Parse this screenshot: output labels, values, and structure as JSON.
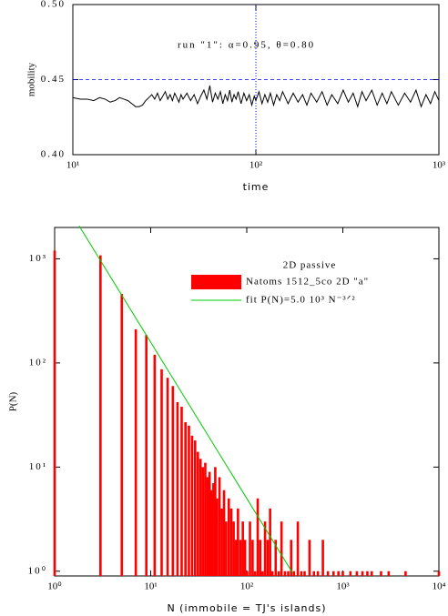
{
  "chart_data": [
    {
      "type": "line",
      "xlabel": "time",
      "ylabel": "mobility",
      "annotation": "run \"1\":  α=0.95,  θ=0.80",
      "xscale": "log",
      "xlim": [
        10,
        1000
      ],
      "xticks": [
        {
          "value": 10,
          "label": "10¹"
        },
        {
          "value": 100,
          "label": "10²"
        },
        {
          "value": 1000,
          "label": "10³"
        }
      ],
      "ylim": [
        0.4,
        0.5
      ],
      "yticks": [
        {
          "value": 0.4,
          "label": "0.40"
        },
        0.45,
        {
          "value": 0.5,
          "label": "0.50"
        }
      ],
      "hline": 0.45,
      "vline": 100,
      "ref_color": "#0000ff",
      "x": [
        10,
        11,
        12,
        13,
        14,
        15,
        16,
        17,
        18,
        19,
        20,
        21,
        22,
        23,
        24,
        25,
        26,
        27,
        28,
        29,
        30,
        31,
        32,
        33,
        34,
        35,
        36,
        37,
        38,
        39,
        40,
        42,
        44,
        46,
        48,
        50,
        52,
        54,
        56,
        58,
        60,
        62,
        64,
        66,
        68,
        70,
        72,
        74,
        76,
        78,
        80,
        83,
        86,
        89,
        92,
        95,
        98,
        100,
        104,
        108,
        112,
        116,
        120,
        125,
        130,
        135,
        140,
        150,
        160,
        170,
        180,
        190,
        200,
        215,
        230,
        245,
        260,
        280,
        300,
        320,
        340,
        360,
        380,
        400,
        430,
        460,
        490,
        520,
        550,
        600,
        650,
        700,
        750,
        800,
        850,
        900,
        950,
        1000
      ],
      "series": [
        {
          "color": "#000000",
          "values": [
            0.438,
            0.437,
            0.437,
            0.436,
            0.438,
            0.437,
            0.435,
            0.436,
            0.438,
            0.437,
            0.436,
            0.434,
            0.432,
            0.432,
            0.433,
            0.436,
            0.438,
            0.44,
            0.437,
            0.441,
            0.436,
            0.439,
            0.442,
            0.437,
            0.44,
            0.436,
            0.441,
            0.438,
            0.435,
            0.44,
            0.437,
            0.441,
            0.436,
            0.44,
            0.434,
            0.439,
            0.443,
            0.437,
            0.446,
            0.435,
            0.441,
            0.437,
            0.442,
            0.434,
            0.44,
            0.436,
            0.443,
            0.435,
            0.44,
            0.437,
            0.442,
            0.434,
            0.441,
            0.436,
            0.44,
            0.433,
            0.439,
            0.436,
            0.442,
            0.434,
            0.44,
            0.435,
            0.441,
            0.433,
            0.44,
            0.436,
            0.442,
            0.434,
            0.441,
            0.435,
            0.44,
            0.433,
            0.441,
            0.435,
            0.442,
            0.433,
            0.44,
            0.434,
            0.443,
            0.435,
            0.441,
            0.432,
            0.442,
            0.436,
            0.443,
            0.433,
            0.441,
            0.434,
            0.442,
            0.433,
            0.441,
            0.435,
            0.443,
            0.432,
            0.44,
            0.434,
            0.442,
            0.436
          ]
        }
      ]
    },
    {
      "type": "bar",
      "xlabel": "N (immobile = TJ's islands)",
      "ylabel": "P(N)",
      "legend_title": "2D passive",
      "legend": "upper right",
      "xscale": "log",
      "yscale": "log",
      "xlim": [
        1,
        10000
      ],
      "ylim": [
        0.9,
        2000
      ],
      "xticks": [
        {
          "value": 1,
          "label": "10⁰"
        },
        {
          "value": 10,
          "label": "10¹"
        },
        {
          "value": 100,
          "label": "10²"
        },
        {
          "value": 1000,
          "label": "10³"
        },
        {
          "value": 10000,
          "label": "10⁴"
        }
      ],
      "yticks": [
        {
          "value": 1,
          "label": "10⁰"
        },
        {
          "value": 10,
          "label": "10¹"
        },
        {
          "value": 100,
          "label": "10²"
        },
        {
          "value": 1000,
          "label": "10³"
        }
      ],
      "series": [
        {
          "name": "Natoms 1512_5co 2D \"a\"",
          "type": "bar",
          "color": "#ff0000",
          "x": [
            1,
            3,
            5,
            7,
            9,
            11,
            13,
            15,
            17,
            19,
            21,
            23,
            25,
            27,
            29,
            31,
            33,
            35,
            37,
            39,
            41,
            43,
            45,
            47,
            49,
            52,
            55,
            58,
            61,
            65,
            69,
            73,
            77,
            81,
            86,
            91,
            96,
            101,
            108,
            115,
            122,
            130,
            138,
            146,
            155,
            165,
            175,
            185,
            200,
            215,
            230,
            250,
            270,
            290,
            310,
            340,
            370,
            400,
            450,
            500,
            550,
            620,
            700,
            800,
            900,
            1000,
            1200,
            1400,
            1600,
            1800,
            2000,
            2500,
            3000,
            4500,
            10000
          ],
          "values": [
            1200,
            1080,
            460,
            210,
            185,
            120,
            87,
            72,
            60,
            42,
            38,
            27,
            25,
            20,
            18,
            14,
            12,
            10,
            11,
            8,
            9,
            6,
            7,
            10,
            5,
            8,
            4,
            6,
            3,
            5,
            4,
            3,
            2,
            4,
            2,
            3,
            2,
            1,
            3,
            2,
            1,
            5,
            2,
            1,
            3,
            2,
            4,
            1,
            2,
            1,
            3,
            1,
            1,
            2,
            1,
            3,
            1,
            1,
            2,
            1,
            1,
            2,
            1,
            1,
            1,
            1,
            1,
            1,
            1,
            1,
            1,
            1,
            1,
            1,
            1
          ]
        },
        {
          "name": "fit P(N)=5.0 10³ N⁻³ᐟ²",
          "type": "line",
          "color": "#00cc00",
          "x": [
            1.8,
            300
          ],
          "values": [
            2070,
            0.962
          ]
        }
      ]
    }
  ]
}
